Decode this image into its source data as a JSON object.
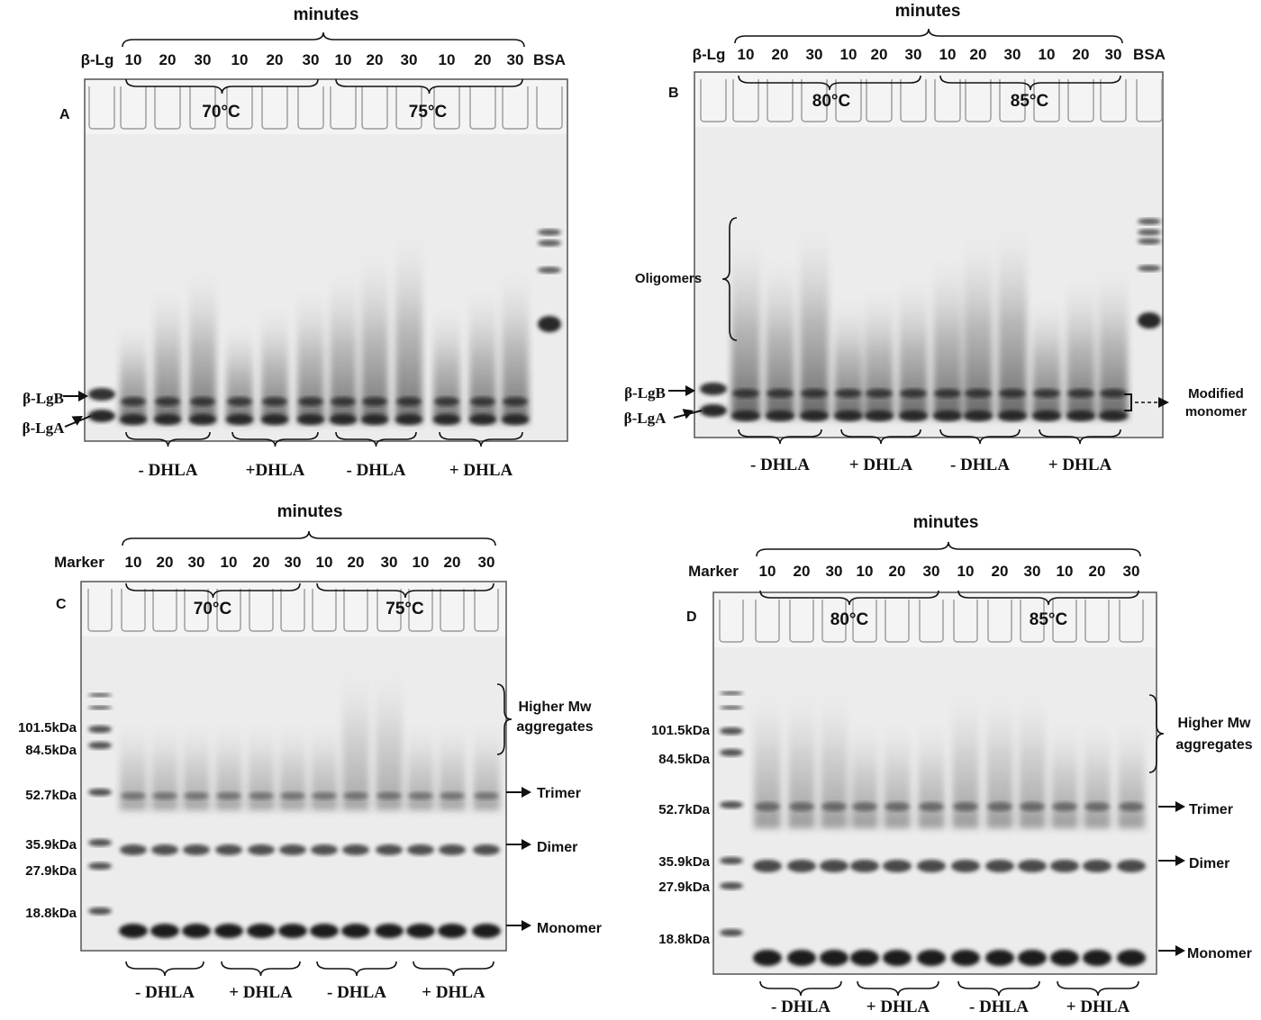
{
  "minutes_label": "minutes",
  "panels": [
    {
      "id": "A",
      "first_lane": "β-Lg",
      "last_lane": "BSA",
      "time_labels": [
        "10",
        "20",
        "30",
        "10",
        "20",
        "30",
        "10",
        "20",
        "30",
        "10",
        "20",
        "30"
      ],
      "temperatures": [
        "70°C",
        "75°C"
      ],
      "treatment_labels": [
        "- DHLA",
        "+DHLA",
        "- DHLA",
        "+ DHLA"
      ],
      "left_labels": [
        "β-LgB",
        "β-LgA"
      ],
      "right_labels": []
    },
    {
      "id": "B",
      "first_lane": "β-Lg",
      "last_lane": "BSA",
      "time_labels": [
        "10",
        "20",
        "30",
        "10",
        "20",
        "30",
        "10",
        "20",
        "30",
        "10",
        "20",
        "30"
      ],
      "temperatures": [
        "80°C",
        "85°C"
      ],
      "treatment_labels": [
        "- DHLA",
        "+ DHLA",
        "- DHLA",
        "+ DHLA"
      ],
      "left_labels": [
        "Oligomers",
        "β-LgB",
        "β-LgA"
      ],
      "right_labels": [
        "Modified",
        "monomer"
      ]
    },
    {
      "id": "C",
      "first_lane": "Marker",
      "time_labels": [
        "10",
        "20",
        "30",
        "10",
        "20",
        "30",
        "10",
        "20",
        "30",
        "10",
        "20",
        "30"
      ],
      "temperatures": [
        "70°C",
        "75°C"
      ],
      "treatment_labels": [
        "- DHLA",
        "+ DHLA",
        "- DHLA",
        "+ DHLA"
      ],
      "marker_labels": [
        "101.5kDa",
        "84.5kDa",
        "52.7kDa",
        "35.9kDa",
        "27.9kDa",
        "18.8kDa"
      ],
      "right_labels": [
        "Higher Mw",
        "aggregates",
        "Trimer",
        "Dimer",
        "Monomer"
      ]
    },
    {
      "id": "D",
      "first_lane": "Marker",
      "time_labels": [
        "10",
        "20",
        "30",
        "10",
        "20",
        "30",
        "10",
        "20",
        "30",
        "10",
        "20",
        "30"
      ],
      "temperatures": [
        "80°C",
        "85°C"
      ],
      "treatment_labels": [
        "- DHLA",
        "+ DHLA",
        "- DHLA",
        "+ DHLA"
      ],
      "marker_labels": [
        "101.5kDa",
        "84.5kDa",
        "52.7kDa",
        "35.9kDa",
        "27.9kDa",
        "18.8kDa"
      ],
      "right_labels": [
        "Higher Mw",
        "aggregates",
        "Trimer",
        "Dimer",
        "Monomer"
      ]
    }
  ]
}
